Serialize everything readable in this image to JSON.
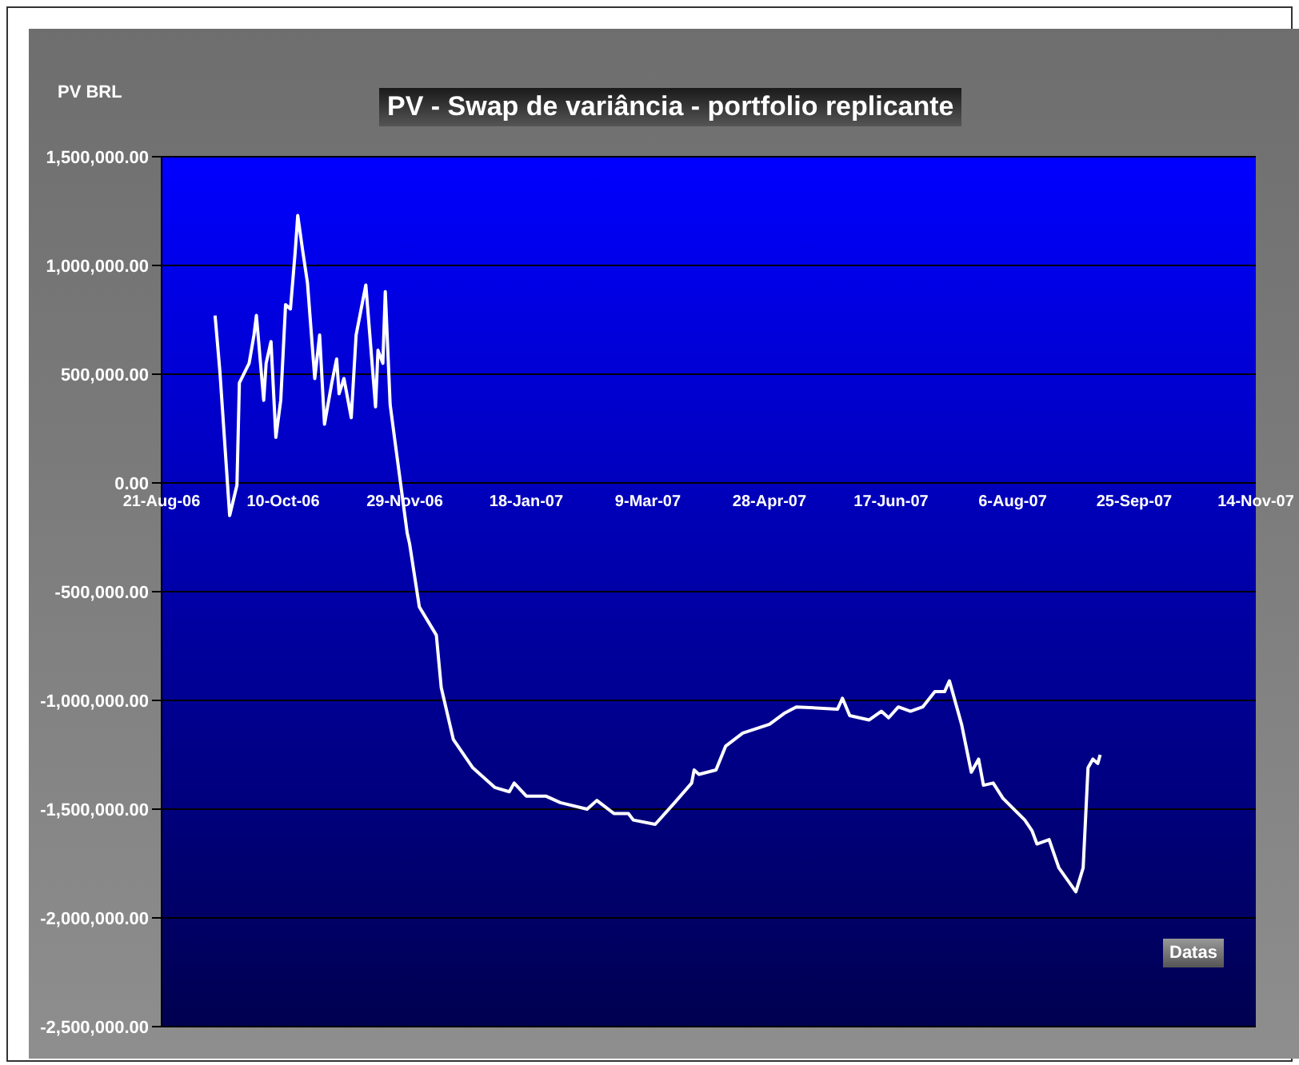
{
  "chart_data": {
    "type": "line",
    "title": "PV - Swap de variância - portfolio replicante",
    "ylabel": "PV BRL",
    "xlabel": "Datas",
    "x": [
      "2006-09-12",
      "2006-09-14",
      "2006-09-18",
      "2006-09-21",
      "2006-09-22",
      "2006-09-26",
      "2006-09-28",
      "2006-09-29",
      "2006-10-02",
      "2006-10-03",
      "2006-10-05",
      "2006-10-07",
      "2006-10-09",
      "2006-10-11",
      "2006-10-13",
      "2006-10-15",
      "2006-10-16",
      "2006-10-18",
      "2006-10-20",
      "2006-10-23",
      "2006-10-25",
      "2006-10-27",
      "2006-10-30",
      "2006-11-01",
      "2006-11-02",
      "2006-11-04",
      "2006-11-07",
      "2006-11-09",
      "2006-11-13",
      "2006-11-17",
      "2006-11-18",
      "2006-11-20",
      "2006-11-21",
      "2006-11-23",
      "2006-11-25",
      "2006-11-30",
      "2006-12-01",
      "2006-12-05",
      "2006-12-12",
      "2006-12-14",
      "2006-12-19",
      "2006-12-27",
      "2007-01-05",
      "2007-01-11",
      "2007-01-13",
      "2007-01-18",
      "2007-01-26",
      "2007-02-01",
      "2007-02-12",
      "2007-02-16",
      "2007-02-23",
      "2007-03-01",
      "2007-03-03",
      "2007-03-12",
      "2007-03-20",
      "2007-03-27",
      "2007-03-28",
      "2007-03-30",
      "2007-04-06",
      "2007-04-10",
      "2007-04-17",
      "2007-04-28",
      "2007-05-04",
      "2007-05-09",
      "2007-05-26",
      "2007-05-28",
      "2007-05-31",
      "2007-06-08",
      "2007-06-13",
      "2007-06-16",
      "2007-06-20",
      "2007-06-25",
      "2007-06-30",
      "2007-07-05",
      "2007-07-09",
      "2007-07-11",
      "2007-07-12",
      "2007-07-16",
      "2007-07-20",
      "2007-07-23",
      "2007-07-25",
      "2007-07-29",
      "2007-08-02",
      "2007-08-11",
      "2007-08-14",
      "2007-08-16",
      "2007-08-21",
      "2007-08-25",
      "2007-09-01",
      "2007-09-04",
      "2007-09-06",
      "2007-09-08",
      "2007-09-10",
      "2007-09-11"
    ],
    "series": [
      {
        "color": "#ffffff",
        "values": [
          770000,
          510000,
          -150000,
          -10000,
          460000,
          550000,
          680000,
          770000,
          380000,
          550000,
          650000,
          210000,
          380000,
          820000,
          800000,
          1070000,
          1230000,
          1070000,
          920000,
          480000,
          680000,
          270000,
          460000,
          570000,
          410000,
          480000,
          300000,
          680000,
          910000,
          350000,
          610000,
          550000,
          880000,
          360000,
          190000,
          -230000,
          -280000,
          -570000,
          -700000,
          -940000,
          -1180000,
          -1310000,
          -1400000,
          -1420000,
          -1380000,
          -1440000,
          -1440000,
          -1470000,
          -1500000,
          -1460000,
          -1520000,
          -1520000,
          -1550000,
          -1570000,
          -1470000,
          -1380000,
          -1320000,
          -1340000,
          -1320000,
          -1210000,
          -1150000,
          -1110000,
          -1060000,
          -1030000,
          -1040000,
          -990000,
          -1070000,
          -1090000,
          -1050000,
          -1080000,
          -1030000,
          -1050000,
          -1030000,
          -960000,
          -960000,
          -910000,
          -950000,
          -1110000,
          -1330000,
          -1270000,
          -1390000,
          -1380000,
          -1450000,
          -1550000,
          -1600000,
          -1660000,
          -1640000,
          -1770000,
          -1880000,
          -1770000,
          -1310000,
          -1270000,
          -1290000,
          -1250000
        ]
      }
    ],
    "xlim": [
      "2006-08-21",
      "2007-11-14"
    ],
    "xticks": [
      {
        "value": "2006-08-21",
        "label": "21-Aug-06"
      },
      {
        "value": "2006-10-10",
        "label": "10-Oct-06"
      },
      {
        "value": "2006-11-29",
        "label": "29-Nov-06"
      },
      {
        "value": "2007-01-18",
        "label": "18-Jan-07"
      },
      {
        "value": "2007-03-09",
        "label": "9-Mar-07"
      },
      {
        "value": "2007-04-28",
        "label": "28-Apr-07"
      },
      {
        "value": "2007-06-17",
        "label": "17-Jun-07"
      },
      {
        "value": "2007-08-06",
        "label": "6-Aug-07"
      },
      {
        "value": "2007-09-25",
        "label": "25-Sep-07"
      },
      {
        "value": "2007-11-14",
        "label": "14-Nov-07"
      }
    ],
    "ylim": [
      -2500000,
      1500000
    ],
    "yticks": [
      {
        "value": -2500000,
        "label": "-2,500,000.00"
      },
      {
        "value": -2000000,
        "label": "-2,000,000.00"
      },
      {
        "value": -1500000,
        "label": "-1,500,000.00"
      },
      {
        "value": -1000000,
        "label": "-1,000,000.00"
      },
      {
        "value": -500000,
        "label": "-500,000.00"
      },
      {
        "value": 0,
        "label": "0.00"
      },
      {
        "value": 500000,
        "label": "500,000.00"
      },
      {
        "value": 1000000,
        "label": "1,000,000.00"
      },
      {
        "value": 1500000,
        "label": "1,500,000.00"
      }
    ],
    "grid": "y",
    "marker": "none",
    "line_style": "solid"
  }
}
